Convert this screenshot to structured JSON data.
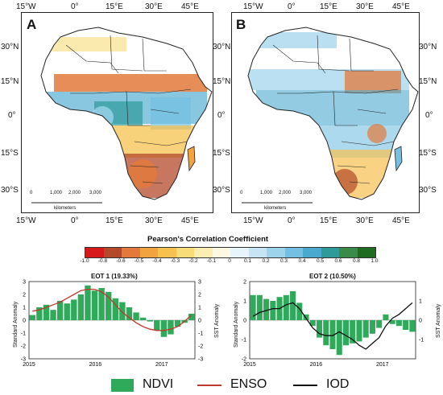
{
  "maps": [
    {
      "panel": "A",
      "top_lon_labels": [
        "15°W",
        "0°",
        "15°E",
        "30°E",
        "45°E"
      ],
      "bottom_lon_labels": [
        "15°W",
        "0°",
        "15°E",
        "30°E",
        "45°E"
      ],
      "left_lat_labels": [
        "30°N",
        "15°N",
        "0°",
        "15°S",
        "30°S"
      ],
      "right_lat_labels": [
        "30°N",
        "15°N",
        "0°",
        "15°S",
        "30°S"
      ],
      "scale_ticks": [
        "0",
        "1,000",
        "2,000",
        "3,000"
      ],
      "scale_unit": "kilometers"
    },
    {
      "panel": "B",
      "top_lon_labels": [
        "15°W",
        "0°",
        "15°E",
        "30°E",
        "45°E"
      ],
      "bottom_lon_labels": [
        "15°W",
        "0°",
        "15°E",
        "30°E",
        "45°E"
      ],
      "left_lat_labels": [
        "30°N",
        "15°N",
        "0°",
        "15°S",
        "30°S"
      ],
      "right_lat_labels": [
        "30°N",
        "15°N",
        "0°",
        "15°S",
        "30°S"
      ],
      "scale_ticks": [
        "0",
        "1,000",
        "2,000",
        "3,000"
      ],
      "scale_unit": "kilometers"
    }
  ],
  "colorbar": {
    "title": "Pearson's Correlation Coefficient",
    "ticks": [
      "-1.0",
      "-0.8",
      "-0.6",
      "-0.5",
      "-0.4",
      "-0.3",
      "-0.2",
      "-0.1",
      "0",
      "0.1",
      "0.2",
      "0.3",
      "0.4",
      "0.5",
      "0.6",
      "0.8",
      "1.0"
    ],
    "colors": [
      "#d7191c",
      "#b4492a",
      "#e3793a",
      "#f1a340",
      "#f6c14f",
      "#f8dc78",
      "#fbeeb0",
      "#fdf8e0",
      "#e8f4fb",
      "#c5e4f4",
      "#9ed3ec",
      "#74c0e2",
      "#4aa9cf",
      "#2e9a9a",
      "#3a8b4a",
      "#1f6b1f"
    ]
  },
  "charts": [
    {
      "title": "EOT 1 (19.33%)",
      "ylabel_left": "Standard Anomaly",
      "ylabel_right": "SST Anomaly",
      "left_ticks": [
        "3",
        "2",
        "1",
        "0",
        "-1",
        "-2",
        "-3"
      ],
      "right_ticks": [
        "3",
        "2",
        "1",
        "0",
        "-1",
        "-2",
        "-3"
      ],
      "x_ticks": [
        "2015",
        "2016",
        "2017"
      ],
      "ylim": [
        -3,
        3
      ],
      "bars": [
        0.4,
        1.0,
        1.2,
        0.8,
        1.5,
        1.3,
        1.6,
        2.0,
        2.7,
        2.3,
        2.5,
        2.2,
        1.7,
        1.4,
        1.0,
        0.6,
        0.2,
        -0.1,
        -0.8,
        -1.3,
        -1.1,
        -0.5,
        -0.2,
        0.5
      ],
      "line": {
        "name": "ENSO",
        "color": "#c0392b",
        "values": [
          0.7,
          0.8,
          1.0,
          1.2,
          1.4,
          1.7,
          2.0,
          2.3,
          2.4,
          2.4,
          2.2,
          1.8,
          1.2,
          0.6,
          0.2,
          -0.2,
          -0.5,
          -0.7,
          -0.8,
          -0.8,
          -0.7,
          -0.5,
          -0.1,
          0.4
        ]
      }
    },
    {
      "title": "EOT 2 (10.50%)",
      "ylabel_left": "Standard Anomaly",
      "ylabel_right": "SST Anomaly",
      "left_ticks": [
        "2",
        "1",
        "0",
        "-1",
        "-2"
      ],
      "right_ticks": [
        "1",
        "0",
        "-1"
      ],
      "x_ticks": [
        "2015",
        "2016",
        "2017"
      ],
      "ylim": [
        -2,
        2
      ],
      "bars": [
        1.3,
        1.3,
        1.1,
        1.0,
        1.2,
        1.3,
        1.5,
        0.9,
        0.3,
        -0.3,
        -0.9,
        -1.3,
        -1.5,
        -1.8,
        -1.3,
        -1.2,
        -1.1,
        -0.9,
        -0.7,
        -0.4,
        0.3,
        -0.2,
        -0.3,
        -0.5,
        -0.6
      ],
      "line": {
        "name": "IOD",
        "color": "#111111",
        "values": [
          0.2,
          0.4,
          0.5,
          0.6,
          0.6,
          0.8,
          0.9,
          0.6,
          0.1,
          -0.4,
          -0.7,
          -0.8,
          -0.8,
          -0.6,
          -0.8,
          -1.0,
          -1.3,
          -1.5,
          -1.2,
          -0.9,
          -0.3,
          0.1,
          0.3,
          0.6,
          0.9
        ]
      }
    }
  ],
  "legend": [
    {
      "label": "NDVI",
      "kind": "patch",
      "color": "#2eaa5a"
    },
    {
      "label": "ENSO",
      "kind": "line",
      "color": "#c0392b"
    },
    {
      "label": "IOD",
      "kind": "line",
      "color": "#111111"
    }
  ]
}
